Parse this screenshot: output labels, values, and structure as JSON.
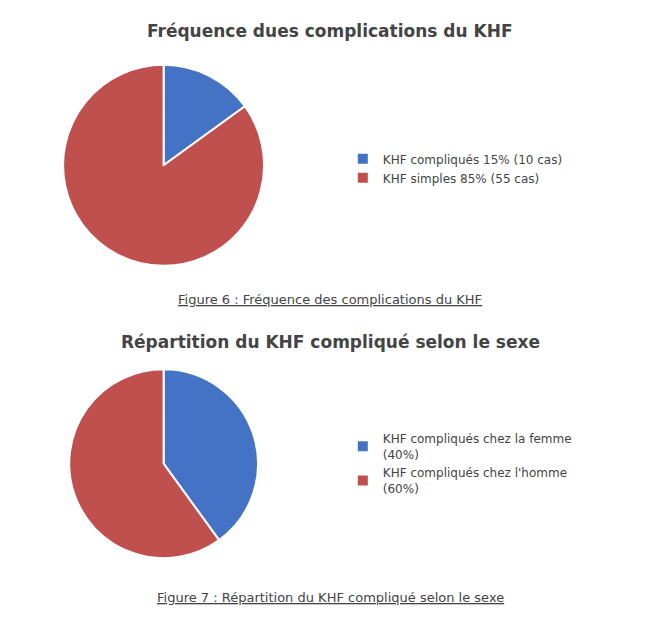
{
  "chart_data": [
    {
      "type": "pie",
      "title": "Fréquence dues complications du KHF",
      "categories": [
        "KHF compliqués 15% (10 cas)",
        "KHF simples 85% (55 cas)"
      ],
      "values": [
        15,
        85
      ],
      "colors": [
        "#4472C4",
        "#C0504D"
      ],
      "legend": "right",
      "annotations": [
        "Figure 6 : Fréquence des complications du KHF"
      ]
    },
    {
      "type": "pie",
      "title": "Répartition du KHF compliqué selon le sexe",
      "categories": [
        "KHF compliqués chez la femme\n(40%)",
        "KHF compliqués chez l'homme\n(60%)"
      ],
      "values": [
        40,
        60
      ],
      "colors": [
        "#4472C4",
        "#C0504D"
      ],
      "legend": "right",
      "annotations": [
        "Figure 7 : Répartition du KHF compliqué selon le sexe"
      ]
    }
  ]
}
